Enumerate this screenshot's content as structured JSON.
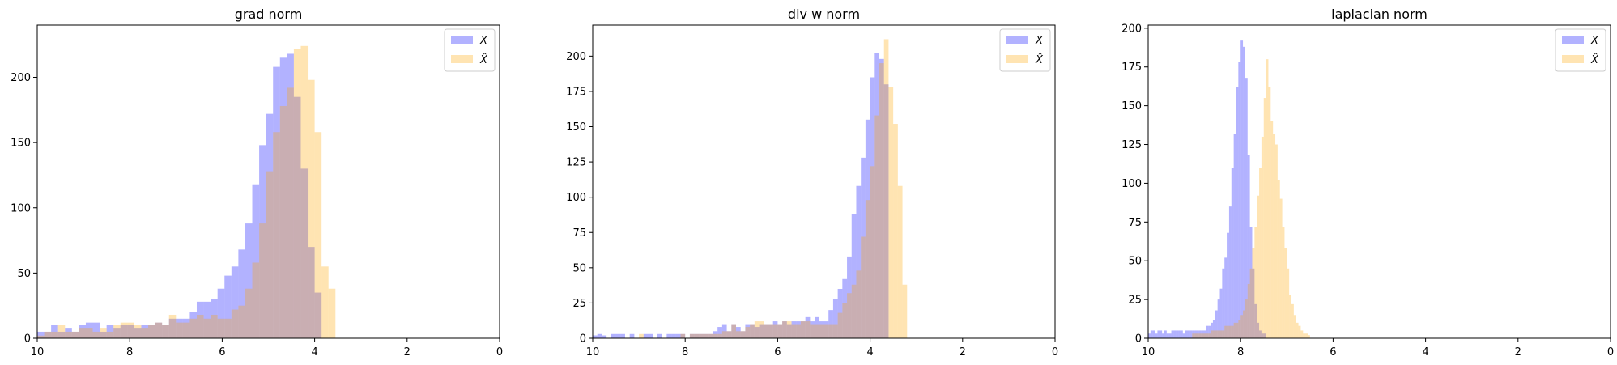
{
  "chart_data": [
    {
      "type": "histogram",
      "title": "grad norm",
      "xlim": [
        10,
        0
      ],
      "ylim": [
        0,
        240
      ],
      "x_ticks": [
        10,
        8,
        6,
        4,
        2,
        0
      ],
      "y_ticks": [
        0,
        50,
        100,
        150,
        200
      ],
      "legend": {
        "placement": "top-right",
        "entries": [
          "X",
          "X̂"
        ]
      },
      "bin_width": 0.15,
      "series": [
        {
          "name": "X",
          "color": "#0000ff",
          "opacity": 0.3,
          "bin_start": 10.0,
          "counts": [
            5,
            5,
            10,
            5,
            8,
            5,
            10,
            12,
            12,
            5,
            10,
            8,
            10,
            10,
            8,
            10,
            10,
            12,
            10,
            15,
            15,
            15,
            20,
            28,
            28,
            30,
            38,
            48,
            55,
            68,
            88,
            118,
            148,
            172,
            208,
            215,
            218,
            185,
            130,
            70,
            35,
            0,
            0,
            0,
            0,
            0,
            0
          ]
        },
        {
          "name": "X̂",
          "color": "#ffa500",
          "opacity": 0.3,
          "bin_start": 10.0,
          "counts": [
            2,
            5,
            5,
            10,
            5,
            5,
            8,
            8,
            5,
            8,
            5,
            10,
            12,
            12,
            10,
            8,
            10,
            12,
            10,
            18,
            12,
            12,
            15,
            18,
            15,
            18,
            15,
            15,
            22,
            25,
            38,
            58,
            88,
            128,
            158,
            178,
            192,
            222,
            224,
            198,
            158,
            55,
            38,
            0,
            0,
            0,
            0
          ]
        }
      ]
    },
    {
      "type": "histogram",
      "title": "div w norm",
      "xlim": [
        10,
        0
      ],
      "ylim": [
        0,
        222
      ],
      "x_ticks": [
        10,
        8,
        6,
        4,
        2,
        0
      ],
      "y_ticks": [
        0,
        25,
        50,
        75,
        100,
        125,
        150,
        175,
        200
      ],
      "legend": {
        "placement": "top-right",
        "entries": [
          "X",
          "X̂"
        ]
      },
      "bin_width": 0.1,
      "series": [
        {
          "name": "X",
          "color": "#0000ff",
          "opacity": 0.3,
          "bin_start": 10.0,
          "counts": [
            2,
            3,
            2,
            0,
            3,
            3,
            3,
            0,
            3,
            0,
            0,
            3,
            3,
            0,
            3,
            0,
            3,
            3,
            3,
            3,
            0,
            3,
            3,
            3,
            3,
            3,
            5,
            8,
            10,
            5,
            10,
            8,
            5,
            10,
            10,
            8,
            10,
            10,
            10,
            12,
            10,
            12,
            10,
            12,
            12,
            12,
            15,
            12,
            15,
            12,
            12,
            20,
            28,
            35,
            42,
            58,
            88,
            108,
            128,
            155,
            185,
            202,
            198,
            180,
            0,
            0,
            0,
            0,
            0,
            0,
            0,
            0,
            0,
            0,
            0,
            0,
            0,
            0,
            0,
            0
          ]
        },
        {
          "name": "X̂",
          "color": "#ffa500",
          "opacity": 0.3,
          "bin_start": 10.0,
          "counts": [
            0,
            0,
            0,
            0,
            0,
            0,
            0,
            0,
            0,
            0,
            3,
            0,
            0,
            0,
            0,
            0,
            0,
            0,
            0,
            3,
            0,
            3,
            3,
            3,
            3,
            3,
            3,
            3,
            5,
            5,
            10,
            5,
            5,
            8,
            10,
            12,
            12,
            10,
            10,
            10,
            10,
            12,
            12,
            10,
            10,
            12,
            12,
            10,
            10,
            10,
            10,
            10,
            10,
            18,
            25,
            32,
            38,
            48,
            72,
            98,
            122,
            158,
            195,
            212,
            178,
            152,
            108,
            38,
            0,
            0,
            0,
            0,
            0,
            0,
            0,
            0,
            0,
            0,
            0,
            0
          ]
        }
      ]
    },
    {
      "type": "histogram",
      "title": "laplacian norm",
      "xlim": [
        10,
        0
      ],
      "ylim": [
        0,
        202
      ],
      "x_ticks": [
        10,
        8,
        6,
        4,
        2,
        0
      ],
      "y_ticks": [
        0,
        25,
        50,
        75,
        100,
        125,
        150,
        175,
        200
      ],
      "legend": {
        "placement": "top-right",
        "entries": [
          "X",
          "X̂"
        ]
      },
      "bin_width": 0.05,
      "series": [
        {
          "name": "X",
          "color": "#0000ff",
          "opacity": 0.3,
          "bin_start": 10.0,
          "counts": [
            3,
            5,
            5,
            3,
            5,
            5,
            3,
            5,
            3,
            3,
            5,
            5,
            5,
            5,
            5,
            3,
            5,
            5,
            5,
            5,
            5,
            5,
            5,
            5,
            5,
            8,
            8,
            10,
            12,
            18,
            25,
            32,
            45,
            52,
            68,
            85,
            110,
            132,
            162,
            178,
            192,
            188,
            168,
            118,
            72,
            45,
            22,
            10,
            5,
            3,
            3,
            0,
            0,
            0,
            0,
            0,
            0,
            0,
            0,
            0,
            0,
            0,
            0,
            0,
            0,
            0,
            0,
            0,
            0,
            0,
            0,
            0,
            0,
            0,
            0,
            0,
            0,
            0,
            0,
            0,
            0,
            0,
            0,
            0,
            0,
            0,
            0,
            0,
            0,
            0
          ]
        },
        {
          "name": "X̂",
          "color": "#ffa500",
          "opacity": 0.3,
          "bin_start": 10.0,
          "counts": [
            0,
            0,
            0,
            0,
            0,
            0,
            0,
            0,
            0,
            0,
            0,
            0,
            0,
            0,
            0,
            0,
            0,
            0,
            0,
            3,
            3,
            3,
            3,
            3,
            3,
            3,
            3,
            5,
            5,
            5,
            5,
            5,
            5,
            8,
            8,
            8,
            8,
            10,
            10,
            12,
            15,
            18,
            25,
            35,
            45,
            58,
            72,
            92,
            110,
            130,
            155,
            180,
            162,
            140,
            132,
            125,
            102,
            90,
            72,
            58,
            45,
            28,
            22,
            15,
            10,
            8,
            5,
            3,
            3,
            2,
            0,
            0,
            0,
            0,
            0,
            0,
            0,
            0,
            0,
            0,
            0,
            0,
            0,
            0,
            0,
            0,
            0,
            0,
            0,
            0
          ]
        }
      ]
    }
  ]
}
